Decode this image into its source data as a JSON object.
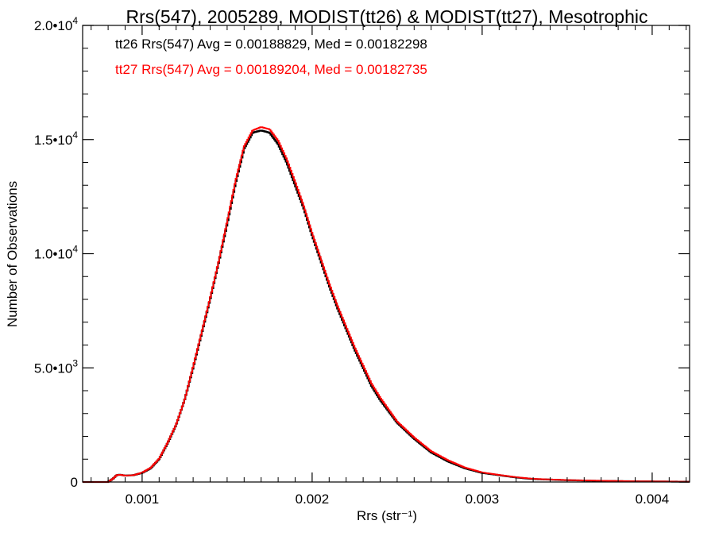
{
  "chart_data": {
    "type": "line",
    "style": "step histogram",
    "title": "Rrs(547), 2005289, MODIST(tt26) & MODIST(tt27), Mesotrophic",
    "xlabel": "Rrs (str⁻¹)",
    "ylabel": "Number of Observations",
    "xlim": [
      0.00065,
      0.00422
    ],
    "ylim": [
      0,
      20000
    ],
    "grid": false,
    "legend_placement": "top-left",
    "x_ticks": [
      {
        "value": 0.001,
        "label": "0.001"
      },
      {
        "value": 0.002,
        "label": "0.002"
      },
      {
        "value": 0.003,
        "label": "0.003"
      },
      {
        "value": 0.004,
        "label": "0.004"
      }
    ],
    "y_ticks": [
      {
        "value": 0,
        "mant": "0",
        "exp": ""
      },
      {
        "value": 5000,
        "mant": "5.0•10",
        "exp": "3"
      },
      {
        "value": 10000,
        "mant": "1.0•10",
        "exp": "4"
      },
      {
        "value": 15000,
        "mant": "1.5•10",
        "exp": "4"
      },
      {
        "value": 20000,
        "mant": "2.0•10",
        "exp": "4"
      }
    ],
    "series": [
      {
        "name": "tt26",
        "color": "#000000",
        "annotation": "tt26 Rrs(547) Avg = 0.00188829, Med = 0.00182298",
        "x": [
          0.00065,
          0.0008,
          0.00083,
          0.00085,
          0.00087,
          0.0009,
          0.00095,
          0.001,
          0.00105,
          0.0011,
          0.00115,
          0.0012,
          0.00125,
          0.0013,
          0.00135,
          0.0014,
          0.00145,
          0.0015,
          0.00155,
          0.0016,
          0.00165,
          0.0017,
          0.00175,
          0.0018,
          0.00185,
          0.0019,
          0.00195,
          0.002,
          0.00205,
          0.0021,
          0.00215,
          0.0022,
          0.00225,
          0.0023,
          0.00235,
          0.0024,
          0.0025,
          0.0026,
          0.0027,
          0.0028,
          0.0029,
          0.003,
          0.0031,
          0.0032,
          0.0033,
          0.0035,
          0.0037,
          0.0039,
          0.0041,
          0.00422
        ],
        "y": [
          0,
          0,
          150,
          300,
          320,
          280,
          300,
          400,
          600,
          1000,
          1700,
          2500,
          3600,
          5000,
          6500,
          8000,
          9600,
          11300,
          13100,
          14600,
          15300,
          15400,
          15300,
          14800,
          14000,
          13000,
          12000,
          10800,
          9700,
          8600,
          7600,
          6700,
          5800,
          5000,
          4200,
          3600,
          2600,
          1900,
          1300,
          900,
          600,
          400,
          300,
          200,
          130,
          80,
          50,
          30,
          20,
          10
        ]
      },
      {
        "name": "tt27",
        "color": "#ff0000",
        "annotation": "tt27 Rrs(547) Avg = 0.00189204, Med = 0.00182735",
        "x": [
          0.00065,
          0.0008,
          0.00083,
          0.00085,
          0.00087,
          0.0009,
          0.00095,
          0.001,
          0.00105,
          0.0011,
          0.00115,
          0.0012,
          0.00125,
          0.0013,
          0.00135,
          0.0014,
          0.00145,
          0.0015,
          0.00155,
          0.0016,
          0.00165,
          0.0017,
          0.00175,
          0.0018,
          0.00185,
          0.0019,
          0.00195,
          0.002,
          0.00205,
          0.0021,
          0.00215,
          0.0022,
          0.00225,
          0.0023,
          0.00235,
          0.0024,
          0.0025,
          0.0026,
          0.0027,
          0.0028,
          0.0029,
          0.003,
          0.0031,
          0.0032,
          0.0033,
          0.0035,
          0.0037,
          0.0039,
          0.0041,
          0.00422
        ],
        "y": [
          0,
          0,
          150,
          300,
          320,
          280,
          300,
          410,
          620,
          1020,
          1720,
          2520,
          3600,
          5050,
          6550,
          8050,
          9650,
          11400,
          13200,
          14700,
          15400,
          15550,
          15450,
          14950,
          14150,
          13150,
          12100,
          10900,
          9800,
          8700,
          7700,
          6800,
          5900,
          5100,
          4300,
          3700,
          2650,
          1950,
          1350,
          950,
          630,
          420,
          310,
          210,
          140,
          85,
          55,
          32,
          22,
          10
        ]
      }
    ]
  }
}
